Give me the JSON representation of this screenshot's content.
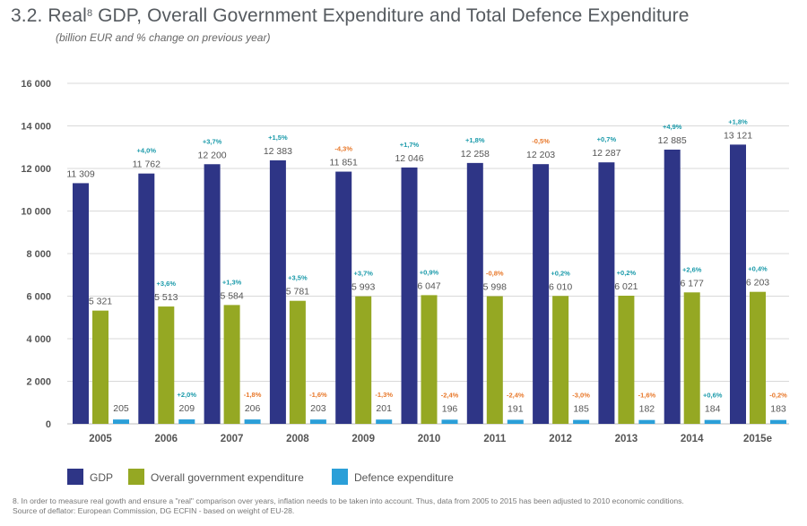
{
  "header": {
    "title_prefix": "3.2. Real",
    "title_sup": "8",
    "title_suffix": "GDP, Overall Government Expenditure and Total Defence Expenditure",
    "subtitle": "(billion EUR and % change on previous year)"
  },
  "chart_data": {
    "type": "bar",
    "title": "Real GDP, Overall Government Expenditure and Total Defence Expenditure",
    "subtitle": "(billion EUR and % change on previous year)",
    "categories": [
      "2005",
      "2006",
      "2007",
      "2008",
      "2009",
      "2010",
      "2011",
      "2012",
      "2013",
      "2014",
      "2015e"
    ],
    "ylim": [
      0,
      16000
    ],
    "yticks": [
      0,
      2000,
      4000,
      6000,
      8000,
      10000,
      12000,
      14000,
      16000
    ],
    "ytick_labels": [
      "0",
      "2 000",
      "4 000",
      "6 000",
      "8 000",
      "10 000",
      "12 000",
      "14 000",
      "16 000"
    ],
    "grid": true,
    "legend_position": "bottom-left",
    "series": [
      {
        "name": "GDP",
        "color": "#2e3586",
        "values": [
          11309,
          11762,
          12200,
          12383,
          11851,
          12046,
          12258,
          12203,
          12287,
          12885,
          13121
        ],
        "value_labels": [
          "11 309",
          "11 762",
          "12 200",
          "12 383",
          "11 851",
          "12 046",
          "12 258",
          "12 203",
          "12 287",
          "12 885",
          "13 121"
        ],
        "changes": [
          "",
          "+4,0%",
          "+3,7%",
          "+1,5%",
          "-4,3%",
          "+1,7%",
          "+1,8%",
          "-0,5%",
          "+0,7%",
          "+4,9%",
          "+1,8%"
        ]
      },
      {
        "name": "Overall government expenditure",
        "color": "#95a823",
        "values": [
          5321,
          5513,
          5584,
          5781,
          5993,
          6047,
          5998,
          6010,
          6021,
          6177,
          6203
        ],
        "value_labels": [
          "5 321",
          "5 513",
          "5 584",
          "5 781",
          "5 993",
          "6 047",
          "5 998",
          "6 010",
          "6 021",
          "6 177",
          "6 203"
        ],
        "changes": [
          "",
          "+3,6%",
          "+1,3%",
          "+3,5%",
          "+3,7%",
          "+0,9%",
          "-0,8%",
          "+0,2%",
          "+0,2%",
          "+2,6%",
          "+0,4%"
        ]
      },
      {
        "name": "Defence expenditure",
        "color": "#2b9fd8",
        "values": [
          205,
          209,
          206,
          203,
          201,
          196,
          191,
          185,
          182,
          184,
          183
        ],
        "value_labels": [
          "205",
          "209",
          "206",
          "203",
          "201",
          "196",
          "191",
          "185",
          "182",
          "184",
          "183"
        ],
        "changes": [
          "",
          "+2,0%",
          "-1,8%",
          "-1,6%",
          "-1,3%",
          "-2,4%",
          "-2,4%",
          "-3,0%",
          "-1,6%",
          "+0,6%",
          "-0,2%"
        ]
      }
    ],
    "change_colors": {
      "positive": "#1a9aaa",
      "negative": "#e8782a"
    }
  },
  "footnote": {
    "line1": "8. In order to measure real gowth and ensure a \"real\" comparison over years, inflation needs to be taken into account. Thus, data from 2005 to 2015 has been adjusted to 2010 economic conditions.",
    "line2": "Source of deflator: European Commission, DG ECFIN - based on weight of EU-28."
  }
}
